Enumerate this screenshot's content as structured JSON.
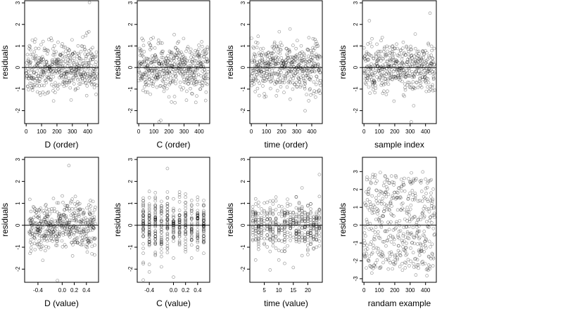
{
  "chart_data": [
    {
      "type": "scatter",
      "title": "",
      "xlabel": "D (order)",
      "ylabel": "residuals",
      "xticks": [
        0,
        100,
        200,
        300,
        400
      ],
      "yticks": [
        -2,
        -1,
        0,
        1,
        2,
        3
      ],
      "xlim": [
        -10,
        470
      ],
      "ylim": [
        -2.6,
        3.1
      ],
      "hline": 0,
      "point_count": 460,
      "seed": 11,
      "x_kind": "index",
      "y_mode": "resid"
    },
    {
      "type": "scatter",
      "title": "",
      "xlabel": "C (order)",
      "ylabel": "residuals",
      "xticks": [
        0,
        100,
        200,
        300,
        400
      ],
      "yticks": [
        -2,
        -1,
        0,
        1,
        2,
        3
      ],
      "xlim": [
        -10,
        470
      ],
      "ylim": [
        -2.6,
        3.1
      ],
      "hline": 0,
      "point_count": 460,
      "seed": 23,
      "x_kind": "index",
      "y_mode": "resid"
    },
    {
      "type": "scatter",
      "title": "",
      "xlabel": "time (order)",
      "ylabel": "residuals",
      "xticks": [
        0,
        100,
        200,
        300,
        400
      ],
      "yticks": [
        -2,
        -1,
        0,
        1,
        2,
        3
      ],
      "xlim": [
        -10,
        470
      ],
      "ylim": [
        -2.6,
        3.1
      ],
      "hline": 0,
      "point_count": 460,
      "seed": 37,
      "x_kind": "index",
      "y_mode": "resid"
    },
    {
      "type": "scatter",
      "title": "",
      "xlabel": "sample index",
      "ylabel": "residuals",
      "xticks": [
        0,
        100,
        200,
        300,
        400
      ],
      "yticks": [
        -2,
        -1,
        0,
        1,
        2,
        3
      ],
      "xlim": [
        -10,
        470
      ],
      "ylim": [
        -2.6,
        3.1
      ],
      "hline": 0,
      "point_count": 460,
      "seed": 41,
      "x_kind": "index",
      "y_mode": "resid"
    },
    {
      "type": "scatter",
      "title": "",
      "xlabel": "D (value)",
      "ylabel": "residuals",
      "xticks": [
        -0.4,
        0.0,
        0.2,
        0.4
      ],
      "xtick_labels": [
        "-0.4",
        "0.0",
        "0.2",
        "0.4"
      ],
      "yticks": [
        -2,
        -1,
        0,
        1,
        2,
        3
      ],
      "xlim": [
        -0.62,
        0.6
      ],
      "ylim": [
        -2.6,
        3.1
      ],
      "hline": 0,
      "point_count": 460,
      "seed": 53,
      "x_kind": "uniform",
      "y_mode": "resid"
    },
    {
      "type": "scatter",
      "title": "",
      "xlabel": "C (value)",
      "ylabel": "residuals",
      "xticks": [
        -0.4,
        0.0,
        0.2,
        0.4
      ],
      "xtick_labels": [
        "-0.4",
        "0.0",
        "0.2",
        "0.4"
      ],
      "yticks": [
        -2,
        -1,
        0,
        1,
        2,
        3
      ],
      "xlim": [
        -0.6,
        0.6
      ],
      "ylim": [
        -2.6,
        3.1
      ],
      "hline": 0,
      "point_count": 460,
      "seed": 67,
      "x_kind": "discrete",
      "x_levels": [
        -0.5,
        -0.4,
        -0.3,
        -0.2,
        -0.1,
        0.0,
        0.1,
        0.2,
        0.3,
        0.4,
        0.5
      ],
      "y_mode": "resid"
    },
    {
      "type": "scatter",
      "title": "",
      "xlabel": "time (value)",
      "ylabel": "residuals",
      "xticks": [
        5,
        10,
        15,
        20
      ],
      "yticks": [
        -2,
        -1,
        0,
        1,
        2,
        3
      ],
      "xlim": [
        0,
        25
      ],
      "ylim": [
        -2.6,
        3.1
      ],
      "hline": 0,
      "point_count": 460,
      "seed": 79,
      "x_kind": "discrete",
      "x_levels": [
        1,
        2,
        3,
        4,
        5,
        6,
        7,
        8,
        9,
        10,
        11,
        12,
        13,
        14,
        15,
        16,
        17,
        18,
        19,
        20,
        21,
        22,
        23,
        24
      ],
      "y_mode": "resid"
    },
    {
      "type": "scatter",
      "title": "",
      "xlabel": "randam example",
      "ylabel": "residuals",
      "xticks": [
        0,
        100,
        200,
        300,
        400
      ],
      "yticks": [
        -3,
        -2,
        -1,
        0,
        1,
        2,
        3
      ],
      "xlim": [
        -10,
        470
      ],
      "ylim": [
        -3.2,
        3.8
      ],
      "hline": 0,
      "point_count": 460,
      "seed": 97,
      "x_kind": "index",
      "y_mode": "wide"
    }
  ]
}
